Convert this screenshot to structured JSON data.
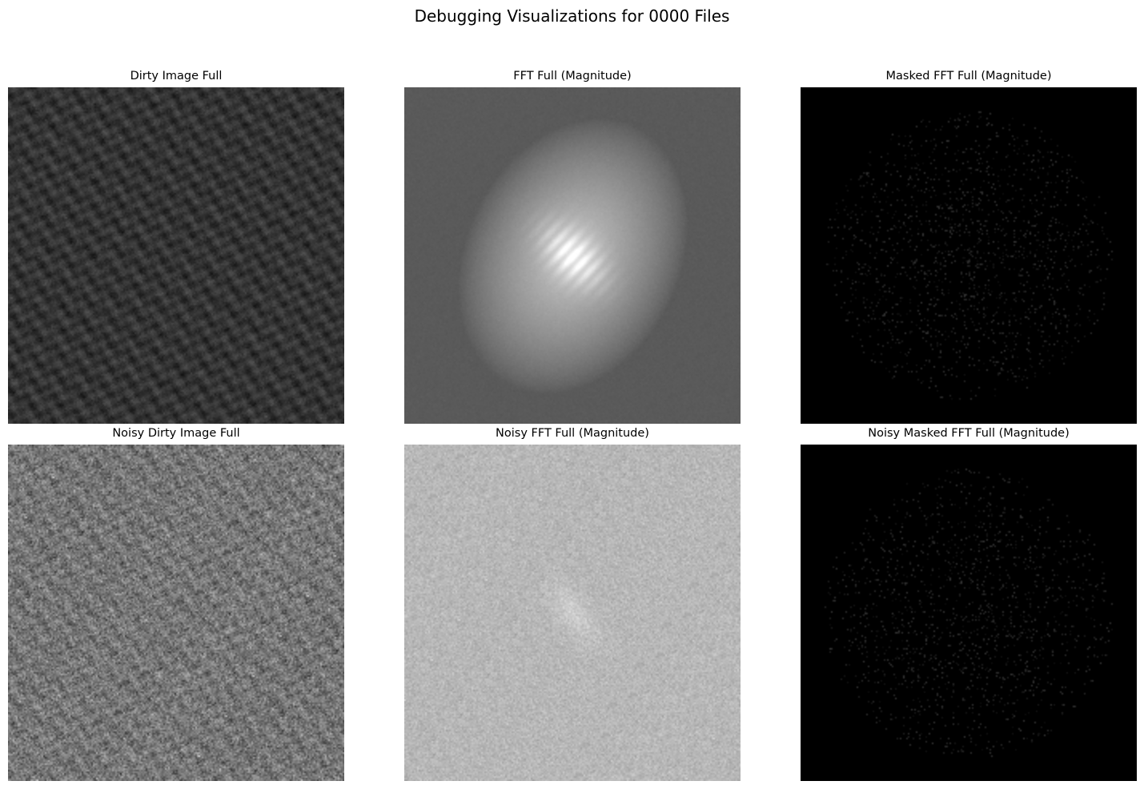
{
  "figure": {
    "title": "Debugging Visualizations for 0000 Files"
  },
  "panels": [
    {
      "title": "Dirty Image Full",
      "render": "dirty_texture",
      "colormap": "gray"
    },
    {
      "title": "FFT Full (Magnitude)",
      "render": "fft_blob",
      "colormap": "gray"
    },
    {
      "title": "Masked FFT Full (Magnitude)",
      "render": "sparse_dots",
      "colormap": "gray"
    },
    {
      "title": "Noisy Dirty Image Full",
      "render": "noisy_texture",
      "colormap": "gray"
    },
    {
      "title": "Noisy FFT Full (Magnitude)",
      "render": "noisy_fft",
      "colormap": "gray"
    },
    {
      "title": "Noisy Masked FFT Full (Magnitude)",
      "render": "sparse_dots",
      "colormap": "gray"
    }
  ],
  "chart_data": {
    "type": "heatmap",
    "layout": "2x3 grid of image panels, axes hidden",
    "panels": [
      "Dirty Image Full",
      "FFT Full (Magnitude)",
      "Masked FFT Full (Magnitude)",
      "Noisy Dirty Image Full",
      "Noisy FFT Full (Magnitude)",
      "Noisy Masked FFT Full (Magnitude)"
    ]
  }
}
